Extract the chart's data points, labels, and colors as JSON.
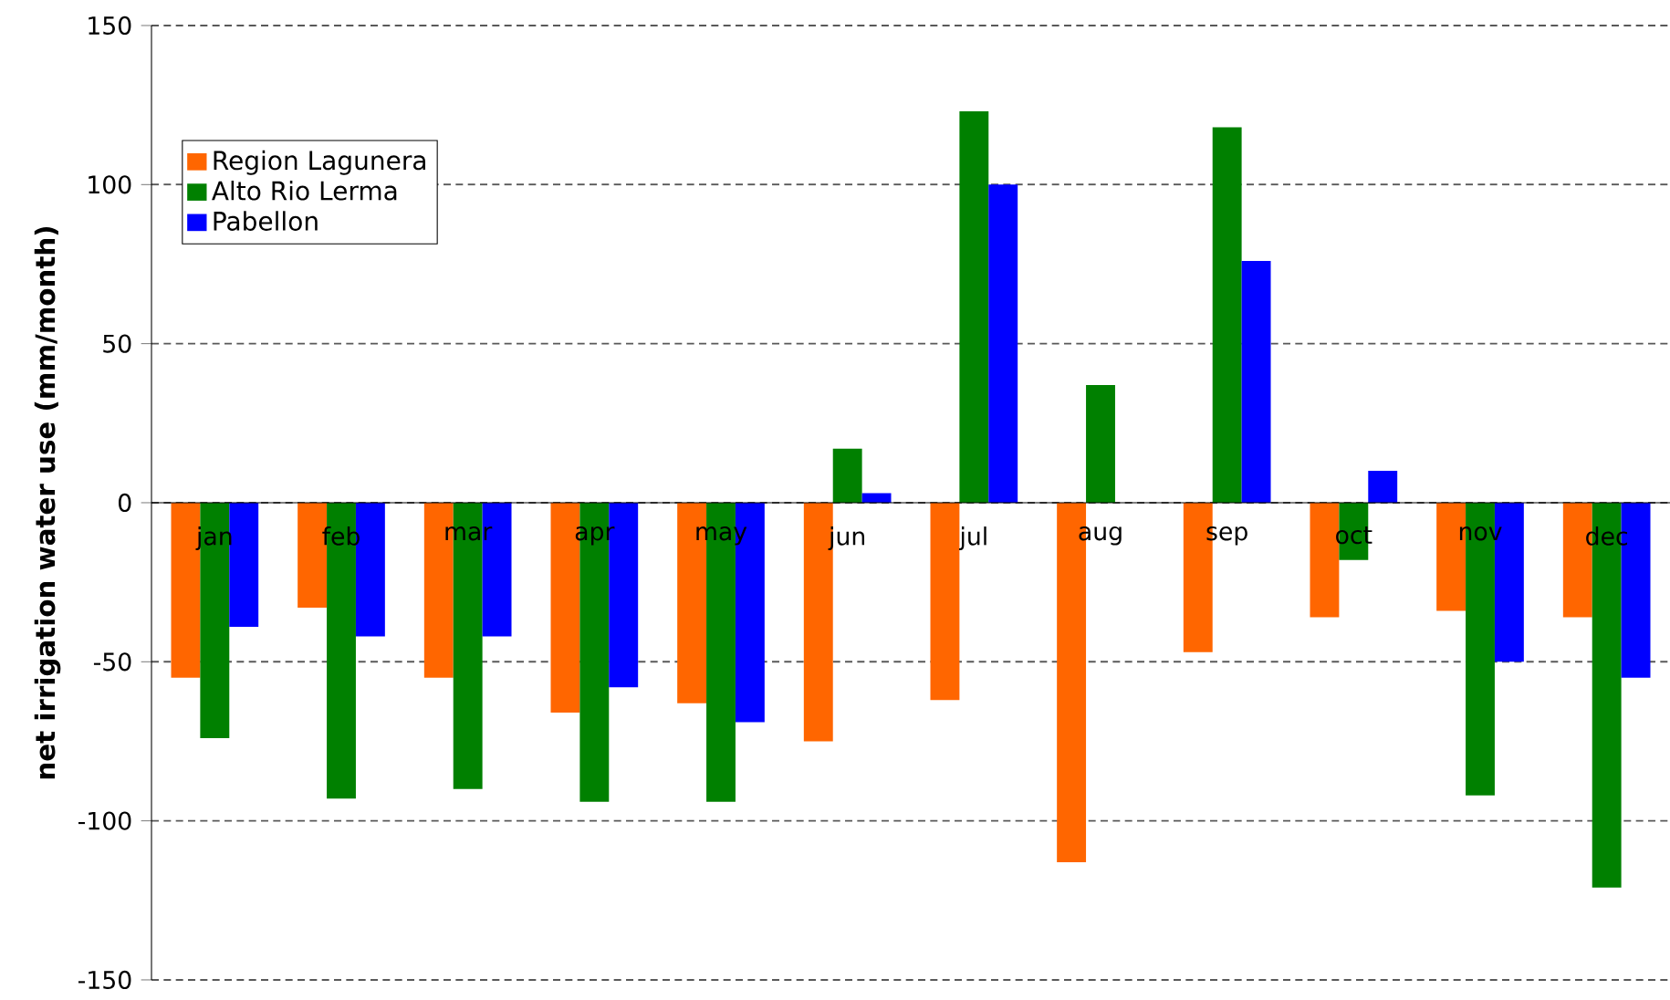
{
  "chart_data": {
    "type": "bar",
    "ylabel": "net irrigation water use (mm/month)",
    "categories": [
      "jan",
      "feb",
      "mar",
      "apr",
      "may",
      "jun",
      "jul",
      "aug",
      "sep",
      "oct",
      "nov",
      "dec"
    ],
    "series": [
      {
        "name": "Region Lagunera",
        "color": "#ff6600",
        "values": [
          -55,
          -33,
          -55,
          -66,
          -63,
          -75,
          -62,
          -113,
          -47,
          -36,
          -34,
          -36
        ]
      },
      {
        "name": "Alto Rio Lerma",
        "color": "#008000",
        "values": [
          -74,
          -93,
          -90,
          -94,
          -94,
          17,
          123,
          37,
          118,
          -18,
          -92,
          -121
        ]
      },
      {
        "name": "Pabellon",
        "color": "#0000ff",
        "values": [
          -39,
          -42,
          -42,
          -58,
          -69,
          3,
          100,
          0,
          76,
          10,
          -50,
          -55
        ]
      }
    ],
    "ylim": [
      -150,
      150
    ],
    "yticks": [
      -150,
      -100,
      -50,
      0,
      50,
      100,
      150
    ],
    "grid": "y",
    "legend": "top left"
  }
}
